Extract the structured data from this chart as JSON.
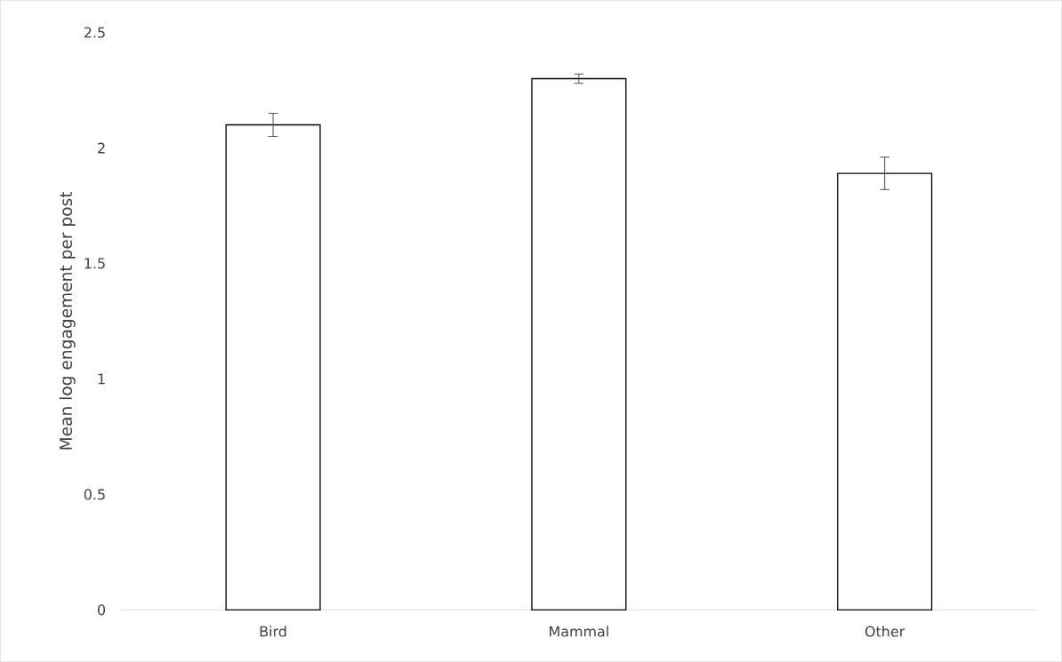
{
  "chart_data": {
    "type": "bar",
    "ylabel": "Mean log engagement per post",
    "categories": [
      "Bird",
      "Mammal",
      "Other"
    ],
    "values": [
      2.1,
      2.3,
      1.89
    ],
    "errors": [
      0.05,
      0.02,
      0.07
    ],
    "color": "#ffffff",
    "ylim": [
      0,
      2.5
    ],
    "yticks": [
      0,
      0.5,
      1,
      1.5,
      2,
      2.5
    ]
  }
}
